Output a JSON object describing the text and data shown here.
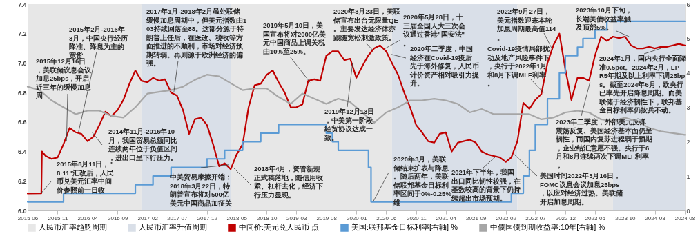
{
  "chart_data": {
    "type": "line",
    "xlim": [
      "2015-06",
      "2024-08"
    ],
    "xticks": [
      "2015-06",
      "2015-11",
      "2016-04",
      "2016-09",
      "2017-02",
      "2017-07",
      "2017-12",
      "2018-05",
      "2018-10",
      "2019-03",
      "2019-08",
      "2020-01",
      "2020-06",
      "2020-11",
      "2021-04",
      "2021-09",
      "2022-02",
      "2022-07",
      "2022-12",
      "2023-05",
      "2023-10",
      "2024-03",
      "2024-08"
    ],
    "ylim": [
      6,
      7.4
    ],
    "yticks": [
      {
        "value": 6,
        "label": "6.0"
      },
      6.2,
      6.4,
      6.6,
      6.8,
      {
        "value": 7,
        "label": "7.0"
      },
      7.2,
      7.4
    ],
    "y2lim": [
      0,
      6
    ],
    "y2ticks": [
      0,
      1,
      2,
      3,
      4,
      5,
      6
    ],
    "grid": false,
    "legend": "bottom",
    "bands": [
      {
        "axis": "x",
        "from": "2015-06",
        "to": "2017-01",
        "label": "人民币汇率趋贬周期",
        "color": "#e7e7e7"
      },
      {
        "axis": "x",
        "from": "2017-01",
        "to": "2018-04",
        "label": "人民币汇率升值周期",
        "color": "#d9dfe8"
      },
      {
        "axis": "x",
        "from": "2018-04",
        "to": "2020-07",
        "color": "#e7e7e7"
      },
      {
        "axis": "x",
        "from": "2020-07",
        "to": "2022-04",
        "color": "#d9dfe8"
      },
      {
        "axis": "x",
        "from": "2022-04",
        "to": "2023-08",
        "color": "#e7e7e7"
      },
      {
        "axis": "x",
        "from": "2023-08",
        "to": "2024-08",
        "color": "#d9dfe8"
      }
    ],
    "series": [
      {
        "name": "中间价:美元兑人民币 点",
        "color": "#c00000",
        "x": [
          "2015-06",
          "2015-08-10",
          "2015-08-13",
          "2015-09",
          "2015-10",
          "2015-11",
          "2015-12",
          "2016-01",
          "2016-02",
          "2016-03",
          "2016-04",
          "2016-05",
          "2016-06",
          "2016-07",
          "2016-08",
          "2016-09",
          "2016-10",
          "2016-11",
          "2016-12",
          "2017-01",
          "2017-02",
          "2017-03",
          "2017-04",
          "2017-05",
          "2017-06",
          "2017-07",
          "2017-08",
          "2017-09",
          "2017-10",
          "2017-11",
          "2017-12",
          "2018-01",
          "2018-02",
          "2018-03",
          "2018-04",
          "2018-05",
          "2018-06",
          "2018-07",
          "2018-08",
          "2018-09",
          "2018-10",
          "2018-11",
          "2018-12",
          "2019-01",
          "2019-02",
          "2019-03",
          "2019-04",
          "2019-05",
          "2019-06",
          "2019-07",
          "2019-08",
          "2019-09",
          "2019-10",
          "2019-11",
          "2019-12",
          "2020-01",
          "2020-02",
          "2020-03",
          "2020-04",
          "2020-05",
          "2020-06",
          "2020-07",
          "2020-08",
          "2020-09",
          "2020-10",
          "2020-11",
          "2020-12",
          "2021-01",
          "2021-02",
          "2021-03",
          "2021-04",
          "2021-05",
          "2021-06",
          "2021-07",
          "2021-08",
          "2021-09",
          "2021-10",
          "2021-11",
          "2021-12",
          "2022-01",
          "2022-02",
          "2022-03",
          "2022-04",
          "2022-05",
          "2022-06",
          "2022-07",
          "2022-08",
          "2022-09",
          "2022-10",
          "2022-11",
          "2022-12",
          "2023-01",
          "2023-02",
          "2023-03",
          "2023-04",
          "2023-05",
          "2023-06",
          "2023-07",
          "2023-08",
          "2023-09",
          "2023-10",
          "2023-11",
          "2023-12",
          "2024-01",
          "2024-02",
          "2024-03",
          "2024-04",
          "2024-05",
          "2024-06",
          "2024-07",
          "2024-08"
        ],
        "values": [
          6.115,
          6.116,
          6.4,
          6.37,
          6.35,
          6.36,
          6.45,
          6.56,
          6.53,
          6.52,
          6.47,
          6.5,
          6.58,
          6.67,
          6.64,
          6.68,
          6.75,
          6.86,
          6.95,
          6.88,
          6.87,
          6.9,
          6.88,
          6.89,
          6.8,
          6.78,
          6.68,
          6.52,
          6.62,
          6.63,
          6.58,
          6.45,
          6.3,
          6.32,
          6.28,
          6.38,
          6.45,
          6.7,
          6.85,
          6.86,
          6.92,
          6.95,
          6.87,
          6.8,
          6.7,
          6.7,
          6.72,
          6.88,
          6.89,
          6.88,
          7.05,
          7.08,
          7.08,
          7.02,
          7.03,
          6.9,
          6.98,
          7.05,
          7.1,
          7.12,
          7.08,
          7.0,
          6.92,
          6.8,
          6.7,
          6.58,
          6.53,
          6.47,
          6.46,
          6.52,
          6.53,
          6.4,
          6.46,
          6.47,
          6.48,
          6.46,
          6.4,
          6.38,
          6.37,
          6.36,
          6.33,
          6.36,
          6.47,
          6.73,
          6.69,
          6.75,
          6.79,
          7.0,
          7.12,
          7.2,
          6.96,
          6.75,
          6.9,
          6.9,
          6.88,
          7.05,
          7.18,
          7.15,
          7.18,
          7.17,
          7.18,
          7.12,
          7.1,
          7.1,
          7.11,
          7.1,
          7.11,
          7.11,
          7.12,
          7.13,
          7.12
        ]
      },
      {
        "name": "美国:联邦基金目标利率[右轴] %",
        "type": "step",
        "axis": "y2",
        "color": "#5b9bd5",
        "x": [
          "2015-06",
          "2015-12",
          "2016-12",
          "2017-03",
          "2017-06",
          "2017-12",
          "2018-03",
          "2018-06",
          "2018-09",
          "2018-12",
          "2019-08",
          "2019-09",
          "2019-10",
          "2020-03-03",
          "2020-03-16",
          "2022-03",
          "2022-05",
          "2022-06",
          "2022-07",
          "2022-09",
          "2022-11",
          "2022-12",
          "2023-02",
          "2023-03",
          "2023-05",
          "2023-07",
          "2024-08"
        ],
        "values": [
          0.25,
          0.5,
          0.75,
          1.0,
          1.25,
          1.5,
          1.75,
          2.0,
          2.25,
          2.5,
          2.25,
          2.0,
          1.75,
          1.25,
          0.25,
          0.5,
          1.0,
          1.75,
          2.5,
          3.25,
          4.0,
          4.5,
          4.75,
          5.0,
          5.25,
          5.5,
          5.5
        ]
      },
      {
        "name": "中债国债到期收益率:10年[右轴] %",
        "axis": "y2",
        "color": "#a6a6a6",
        "x": [
          "2015-06",
          "2015-08",
          "2015-10",
          "2015-12",
          "2016-02",
          "2016-04",
          "2016-06",
          "2016-08",
          "2016-10",
          "2016-12",
          "2017-02",
          "2017-04",
          "2017-06",
          "2017-08",
          "2017-10",
          "2017-12",
          "2018-02",
          "2018-04",
          "2018-06",
          "2018-08",
          "2018-10",
          "2018-12",
          "2019-02",
          "2019-04",
          "2019-06",
          "2019-08",
          "2019-10",
          "2019-12",
          "2020-02",
          "2020-04",
          "2020-06",
          "2020-08",
          "2020-10",
          "2020-12",
          "2021-02",
          "2021-04",
          "2021-06",
          "2021-08",
          "2021-10",
          "2021-12",
          "2022-02",
          "2022-04",
          "2022-06",
          "2022-08",
          "2022-10",
          "2022-12",
          "2023-02",
          "2023-04",
          "2023-06",
          "2023-08",
          "2023-10",
          "2023-12",
          "2024-02",
          "2024-04",
          "2024-06",
          "2024-08"
        ],
        "values": [
          3.6,
          3.5,
          3.2,
          3.0,
          2.8,
          2.9,
          2.9,
          2.75,
          2.7,
          3.0,
          3.4,
          3.45,
          3.5,
          3.6,
          3.8,
          3.95,
          3.9,
          3.7,
          3.5,
          3.55,
          3.55,
          3.3,
          3.1,
          3.4,
          3.25,
          3.1,
          3.25,
          3.15,
          2.85,
          2.55,
          2.85,
          3.0,
          3.2,
          3.2,
          3.25,
          3.2,
          3.1,
          2.85,
          2.95,
          2.8,
          2.8,
          2.8,
          2.8,
          2.65,
          2.7,
          2.85,
          2.9,
          2.85,
          2.65,
          2.6,
          2.7,
          2.6,
          2.4,
          2.3,
          2.25,
          2.2
        ]
      }
    ],
    "annotations": [
      {
        "text": "2015年8月11日，\"8·11\"汇改后，人民币兑美元汇率中间价参照前一日收",
        "x": "2015-08-11",
        "y": 6.12
      },
      {
        "text": "2015年12月16日，美联储议息会议加息25bps，开启近三年的缓慢加息周",
        "x": "2015-12-16",
        "y": 6.47
      },
      {
        "text": "2015年2月-2016年3月，中国央行经历降准、降息为主的宽货",
        "x": "2016-02-15",
        "y": 6.53
      },
      {
        "text": "2017年1月-2018年2月虽处联储缓慢加息周期中，但美元指数由103持续回落至88。这部分源于特朗普上任后，在医改、税收等方面推进的不顺利，市场对经济预期转弱。再则源于欧洲经济的偏强。",
        "x": "2017-06-15",
        "y": 6.8
      },
      {
        "text": "2014年11月-2016年10月，我国贸易总额同比连续两年位于负值区间，进出口呈下行压力。",
        "x": "2016-04-25",
        "y": 6.53
      },
      {
        "text": "中美贸易摩擦开端：2018年3月22日，特朗普宣布将对500亿美元中国商品加征关",
        "x": "2018-03-22",
        "y": 6.31
      },
      {
        "text": "2018年4月，资管新规正式稿落地，随信用收紧、杠杆去化，经济下行压力显现。",
        "x": "2018-04-15",
        "y": 6.29
      },
      {
        "text": "2019年5月10日，美国宣布将对2000亿美元中国商品上调关税由10%至25%。",
        "x": "2019-05-10",
        "y": 6.87
      },
      {
        "text": "2019年12月13日，中美第一阶段经贸协议达成一致。",
        "x": "2019-12-13",
        "y": 7.0
      },
      {
        "text": "2020年3月23日，美联储宣布出台无限量QE。主要发达经济体亦跟随宽松刺激政策。",
        "x": "2020-03-23",
        "y": 7.09
      },
      {
        "text": "2020年5月28日，十三届全国人大三次会议通过香港\"国安法\"。",
        "x": "2020-05-28",
        "y": 7.1
      },
      {
        "text": "2020年二季度，中国经济在Covid-19疫后先于海外修复，人民币计价资产相对吸引力提升。",
        "x": "2020-06-25",
        "y": 7.06
      },
      {
        "text": "2020年3月，美联储结束扩表与降息。随后两年，美联储联邦基金目标利率区间于0%-0.25%维",
        "x": "2020-03-27",
        "y": 6.06
      },
      {
        "text": "2021年下半年，我国出口同比韧性较强，在基数较高的背景下仍持续超出市场预期。",
        "x": "2021-12-15",
        "y": 6.37
      },
      {
        "text": "Covid-19疫情局部扰动及地产风险事件下，央行于2022年1月和8月下调MLF利率。",
        "x": "2022-08-12",
        "y": 6.8
      },
      {
        "text": "2022年9月27日，美元指数迎来本轮加息周期最高值114。",
        "x": "2022-09-27",
        "y": 7.09
      },
      {
        "text": "美国时间2022年3月16日，FOMC议息会议加息25bps，以应对经济过热。美联储开启加息周期。",
        "x": "2022-03-16",
        "y": 6.38
      },
      {
        "text": "2023年10月下旬，长端美债收益率触及顶部5%。",
        "x": "2023-10-22",
        "y": 7.18
      },
      {
        "text": "2024年1月，国内央行全面降准0.5pct。2024年2月，LPR5年期及以上利率下调25bps。截至2024年6月，欧央行已率先开启降息周期。而美联储于经济韧性下，联邦基金目标利率仍按兵不动。",
        "x": "2024-04",
        "y": 7.1
      },
      {
        "text": "2023年二季度，外部美元反弹震荡反复、美国经济基本面仍呈韧性，而国内复苏进程弱于预期，企业结汇意愿不强。央行于6月和8月连续两次下调MLF利率，",
        "x": "2023-04-06",
        "y": 6.87
      }
    ]
  }
}
